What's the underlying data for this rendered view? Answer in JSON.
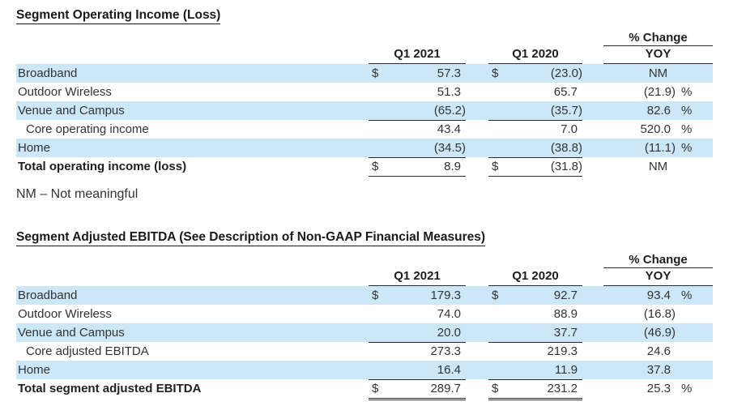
{
  "styles": {
    "stripe_color": "#cbe7f8",
    "rule_color": "#2b2b2b",
    "text_color": "#333333"
  },
  "note": "NM – Not meaningful",
  "tables": [
    {
      "title": "Segment Operating Income (Loss)",
      "headers": {
        "change": "% Change",
        "q1_2021": "Q1 2021",
        "q1_2020": "Q1 2020",
        "yoy": "YOY"
      },
      "rows": [
        {
          "label": "Broadband",
          "cur1": "$",
          "q1_2021": "57.3",
          "cur2": "$",
          "q1_2020": "(23.0)",
          "yoy": "NM",
          "pct": ""
        },
        {
          "label": "Outdoor Wireless",
          "cur1": "",
          "q1_2021": "51.3",
          "cur2": "",
          "q1_2020": "65.7",
          "yoy": "(21.9)",
          "pct": "%"
        },
        {
          "label": "Venue and Campus",
          "cur1": "",
          "q1_2021": "(65.2)",
          "cur2": "",
          "q1_2020": "(35.7)",
          "yoy": "82.6",
          "pct": "%"
        },
        {
          "label": "Core operating income",
          "cur1": "",
          "q1_2021": "43.4",
          "cur2": "",
          "q1_2020": "7.0",
          "yoy": "520.0",
          "pct": "%"
        },
        {
          "label": "Home",
          "cur1": "",
          "q1_2021": "(34.5)",
          "cur2": "",
          "q1_2020": "(38.8)",
          "yoy": "(11.1)",
          "pct": "%"
        },
        {
          "label": "Total operating income (loss)",
          "cur1": "$",
          "q1_2021": "8.9",
          "cur2": "$",
          "q1_2020": "(31.8)",
          "yoy": "NM",
          "pct": ""
        }
      ]
    },
    {
      "title": "Segment Adjusted EBITDA (See Description of Non-GAAP Financial Measures)",
      "headers": {
        "change": "% Change",
        "q1_2021": "Q1 2021",
        "q1_2020": "Q1 2020",
        "yoy": "YOY"
      },
      "rows": [
        {
          "label": "Broadband",
          "cur1": "$",
          "q1_2021": "179.3",
          "cur2": "$",
          "q1_2020": "92.7",
          "yoy": "93.4",
          "pct": "%"
        },
        {
          "label": "Outdoor Wireless",
          "cur1": "",
          "q1_2021": "74.0",
          "cur2": "",
          "q1_2020": "88.9",
          "yoy": "(16.8)",
          "pct": ""
        },
        {
          "label": "Venue and Campus",
          "cur1": "",
          "q1_2021": "20.0",
          "cur2": "",
          "q1_2020": "37.7",
          "yoy": "(46.9)",
          "pct": ""
        },
        {
          "label": "Core adjusted EBITDA",
          "cur1": "",
          "q1_2021": "273.3",
          "cur2": "",
          "q1_2020": "219.3",
          "yoy": "24.6",
          "pct": ""
        },
        {
          "label": "Home",
          "cur1": "",
          "q1_2021": "16.4",
          "cur2": "",
          "q1_2020": "11.9",
          "yoy": "37.8",
          "pct": ""
        },
        {
          "label": "Total segment adjusted EBITDA",
          "cur1": "$",
          "q1_2021": "289.7",
          "cur2": "$",
          "q1_2020": "231.2",
          "yoy": "25.3",
          "pct": "%"
        }
      ]
    }
  ]
}
